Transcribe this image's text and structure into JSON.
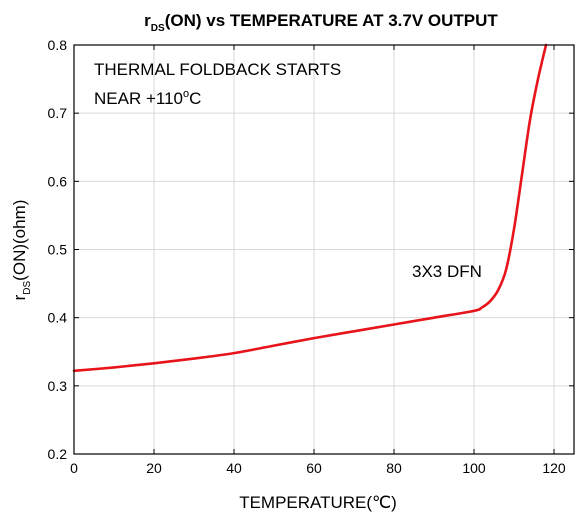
{
  "chart_data": {
    "type": "line",
    "title_main": "r",
    "title_sub": "DS",
    "title_rest": "(ON) vs TEMPERATURE AT 3.7V OUTPUT",
    "xlabel": "TEMPERATURE(℃)",
    "ylabel_main": "r",
    "ylabel_sub": "DS",
    "ylabel_rest": "(ON)(ohm)",
    "xlim": [
      0,
      125
    ],
    "ylim": [
      0.2,
      0.8
    ],
    "x_ticks": [
      0,
      20,
      40,
      60,
      80,
      100,
      120
    ],
    "y_ticks": [
      0.2,
      0.3,
      0.4,
      0.5,
      0.6,
      0.7,
      0.8
    ],
    "x_tick_labels": [
      "0",
      "20",
      "40",
      "60",
      "80",
      "100",
      "120"
    ],
    "y_tick_labels": [
      "0.2",
      "0.3",
      "0.4",
      "0.5",
      "0.6",
      "0.7",
      "0.8"
    ],
    "grid": true,
    "annotation_line1": "THERMAL FOLDBACK STARTS",
    "annotation_line2_pre": "NEAR +110",
    "annotation_line2_sup": "o",
    "annotation_line2_post": "C",
    "series_label": "3X3 DFN",
    "series": [
      {
        "color": "#e8141c",
        "x": [
          0,
          10,
          20,
          30,
          40,
          50,
          60,
          70,
          80,
          90,
          100,
          102,
          104,
          106,
          108,
          110,
          112,
          114,
          116,
          118
        ],
        "y": [
          0.322,
          0.327,
          0.333,
          0.34,
          0.348,
          0.359,
          0.37,
          0.38,
          0.39,
          0.4,
          0.41,
          0.415,
          0.424,
          0.44,
          0.47,
          0.53,
          0.61,
          0.69,
          0.75,
          0.8
        ]
      }
    ]
  }
}
